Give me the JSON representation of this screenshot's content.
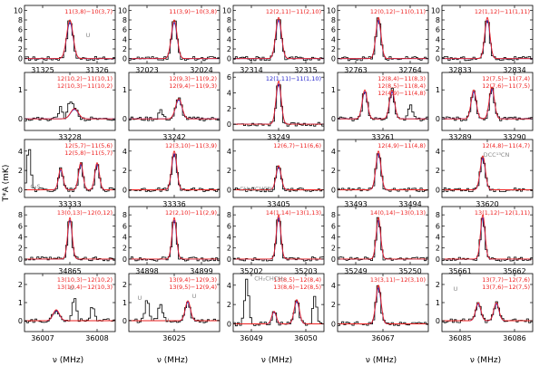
{
  "chart_data": {
    "type": "line",
    "title": "",
    "xlabel": "ν (MHz)",
    "ylabel": "T*A (mK)",
    "colors": {
      "observed": "#000000",
      "model_total": "#2222cc",
      "model_species": "#ee2222",
      "other": "#888888"
    },
    "panels": [
      {
        "label_lines": [
          "11(3,8)−10(3,7)"
        ],
        "label_color": "#ee2222",
        "x_ticks": [
          "31325",
          "31326"
        ],
        "y_ticks": [
          "0",
          "2",
          "4",
          "6",
          "8",
          "10"
        ],
        "ylim": [
          -1,
          11
        ],
        "peaks": [
          {
            "pos": 0.5,
            "h": 8,
            "w": 0.05
          }
        ],
        "extra": [],
        "annots": [
          {
            "text": "U",
            "x": 0.7,
            "y": 0.55,
            "color": "#888888"
          }
        ]
      },
      {
        "label_lines": [
          "11(3,9)−10(3,8)"
        ],
        "label_color": "#ee2222",
        "x_ticks": [
          "32023",
          "32024"
        ],
        "y_ticks": [
          "0",
          "2",
          "4",
          "6",
          "8",
          "10"
        ],
        "ylim": [
          -1,
          11
        ],
        "peaks": [
          {
            "pos": 0.5,
            "h": 8,
            "w": 0.045
          }
        ],
        "extra": [],
        "annots": []
      },
      {
        "label_lines": [
          "12(2,11)−11(2,10)"
        ],
        "label_color": "#ee2222",
        "x_ticks": [
          "32314",
          "32315"
        ],
        "y_ticks": [
          "0",
          "2",
          "4",
          "6",
          "8",
          "10"
        ],
        "ylim": [
          -1,
          11
        ],
        "peaks": [
          {
            "pos": 0.5,
            "h": 8.5,
            "w": 0.045
          }
        ],
        "extra": [],
        "annots": []
      },
      {
        "label_lines": [
          "12(0,12)−11(0,11)"
        ],
        "label_color": "#ee2222",
        "x_ticks": [
          "32763",
          "32764"
        ],
        "y_ticks": [
          "0",
          "2",
          "4",
          "6",
          "8",
          "10"
        ],
        "ylim": [
          -1,
          11
        ],
        "peaks": [
          {
            "pos": 0.45,
            "h": 8.5,
            "w": 0.04
          }
        ],
        "extra": [],
        "annots": []
      },
      {
        "label_lines": [
          "12(1,12)−11(1,11)"
        ],
        "label_color": "#ee2222",
        "x_ticks": [
          "32833",
          "32834"
        ],
        "y_ticks": [
          "0",
          "2",
          "4",
          "6",
          "8",
          "10"
        ],
        "ylim": [
          -1,
          11
        ],
        "peaks": [
          {
            "pos": 0.5,
            "h": 8.5,
            "w": 0.04
          }
        ],
        "extra": [],
        "annots": []
      },
      {
        "label_lines": [
          "12(10,2)−11(10,1)",
          "12(10,3)−11(10,2)"
        ],
        "label_color": "#ee2222",
        "x_ticks": [
          "33228"
        ],
        "y_ticks": [
          "0",
          "1"
        ],
        "ylim": [
          -0.4,
          1.6
        ],
        "peaks": [
          {
            "pos": 0.55,
            "h": 0.35,
            "w": 0.06
          }
        ],
        "extra": [
          {
            "pos": 0.4,
            "h": 0.4
          },
          {
            "pos": 0.5,
            "h": 0.5
          }
        ],
        "annots": []
      },
      {
        "label_lines": [
          "12(9,3)−11(9,2)",
          "12(9,4)−11(9,3)"
        ],
        "label_color": "#ee2222",
        "x_ticks": [
          "33242"
        ],
        "y_ticks": [
          "0",
          "1"
        ],
        "ylim": [
          -0.4,
          1.6
        ],
        "peaks": [
          {
            "pos": 0.55,
            "h": 0.7,
            "w": 0.05
          }
        ],
        "extra": [
          {
            "pos": 0.35,
            "h": 0.3
          }
        ],
        "annots": []
      },
      {
        "label_lines": [
          "12(1,11)−11(1,10)"
        ],
        "label_color": "#2222cc",
        "x_ticks": [
          "33249"
        ],
        "y_ticks": [
          "0",
          "2",
          "4",
          "6"
        ],
        "ylim": [
          -0.8,
          6.6
        ],
        "peaks": [
          {
            "pos": 0.5,
            "h": 5.5,
            "w": 0.04
          }
        ],
        "extra": [],
        "annots": []
      },
      {
        "label_lines": [
          "12(8,4)−11(8,3)",
          "12(8,5)−11(8,4)",
          "12(4,9)−11(4,8)"
        ],
        "label_color": "#ee2222",
        "x_ticks": [
          "33261"
        ],
        "y_ticks": [
          "0",
          "1"
        ],
        "ylim": [
          -0.4,
          1.6
        ],
        "peaks": [
          {
            "pos": 0.3,
            "h": 1.0,
            "w": 0.04
          },
          {
            "pos": 0.6,
            "h": 1.0,
            "w": 0.04
          }
        ],
        "extra": [
          {
            "pos": 0.8,
            "h": 0.5
          }
        ],
        "annots": []
      },
      {
        "label_lines": [
          "12(7,5)−11(7,4)",
          "12(7,6)−11(7,5)"
        ],
        "label_color": "#ee2222",
        "x_ticks": [
          "33289",
          "33290"
        ],
        "y_ticks": [
          "0",
          "1"
        ],
        "ylim": [
          -0.4,
          1.6
        ],
        "peaks": [
          {
            "pos": 0.35,
            "h": 1.0,
            "w": 0.04
          },
          {
            "pos": 0.55,
            "h": 1.1,
            "w": 0.04
          }
        ],
        "extra": [],
        "annots": []
      },
      {
        "label_lines": [
          "12(5,7)−11(5,6)",
          "12(5,8)−11(5,7)"
        ],
        "label_color": "#ee2222",
        "x_ticks": [
          "33333"
        ],
        "y_ticks": [
          "0",
          "2",
          "4"
        ],
        "ylim": [
          -0.8,
          5.2
        ],
        "peaks": [
          {
            "pos": 0.4,
            "h": 2.2,
            "w": 0.035
          },
          {
            "pos": 0.62,
            "h": 2.8,
            "w": 0.035
          },
          {
            "pos": 0.8,
            "h": 2.8,
            "w": 0.035
          }
        ],
        "extra": [
          {
            "pos": 0.05,
            "h": 4.5
          }
        ],
        "annots": [
          {
            "text": "C₂S",
            "x": 0.12,
            "y": 0.84,
            "color": "#888888"
          }
        ]
      },
      {
        "label_lines": [
          "12(3,10)−11(3,9)"
        ],
        "label_color": "#ee2222",
        "x_ticks": [
          "33336"
        ],
        "y_ticks": [
          "0",
          "2",
          "4"
        ],
        "ylim": [
          -0.8,
          5.2
        ],
        "peaks": [
          {
            "pos": 0.5,
            "h": 4.0,
            "w": 0.04
          }
        ],
        "extra": [],
        "annots": []
      },
      {
        "label_lines": [
          "12(6,7)−11(6,6)"
        ],
        "label_color": "#ee2222",
        "x_ticks": [
          "33405"
        ],
        "y_ticks": [
          "0",
          "2",
          "4"
        ],
        "ylim": [
          -0.8,
          5.2
        ],
        "peaks": [
          {
            "pos": 0.5,
            "h": 2.5,
            "w": 0.04
          }
        ],
        "extra": [],
        "annots": [
          {
            "text": "CH₂CCHCN",
            "x": 0.25,
            "y": 0.88,
            "color": "#888888"
          }
        ]
      },
      {
        "label_lines": [
          "12(4,9)−11(4,8)"
        ],
        "label_color": "#ee2222",
        "x_ticks": [
          "33493",
          "33494"
        ],
        "y_ticks": [
          "0",
          "2",
          "4"
        ],
        "ylim": [
          -0.8,
          5.2
        ],
        "peaks": [
          {
            "pos": 0.45,
            "h": 4.0,
            "w": 0.04
          }
        ],
        "extra": [],
        "annots": []
      },
      {
        "label_lines": [
          "12(4,8)−11(4,7)"
        ],
        "label_color": "#ee2222",
        "x_ticks": [
          "33620"
        ],
        "y_ticks": [
          "0",
          "2",
          "4"
        ],
        "ylim": [
          -0.8,
          5.2
        ],
        "peaks": [
          {
            "pos": 0.45,
            "h": 3.5,
            "w": 0.04
          }
        ],
        "extra": [],
        "annots": [
          {
            "text": "DCC¹³CN",
            "x": 0.6,
            "y": 0.3,
            "color": "#888888"
          }
        ]
      },
      {
        "label_lines": [
          "13(0,13)−12(0,12)"
        ],
        "label_color": "#ee2222",
        "x_ticks": [
          "34865"
        ],
        "y_ticks": [
          "0",
          "2",
          "4",
          "6",
          "8"
        ],
        "ylim": [
          -1,
          9.5
        ],
        "peaks": [
          {
            "pos": 0.5,
            "h": 7.5,
            "w": 0.035
          }
        ],
        "extra": [],
        "annots": []
      },
      {
        "label_lines": [
          "12(2,10)−11(2,9)"
        ],
        "label_color": "#ee2222",
        "x_ticks": [
          "34898",
          "34899"
        ],
        "y_ticks": [
          "0",
          "2",
          "4",
          "6",
          "8"
        ],
        "ylim": [
          -1,
          9.5
        ],
        "peaks": [
          {
            "pos": 0.5,
            "h": 7.5,
            "w": 0.035
          }
        ],
        "extra": [],
        "annots": []
      },
      {
        "label_lines": [
          "14(1,14)−13(1,13)"
        ],
        "label_color": "#ee2222",
        "x_ticks": [
          "35202",
          "35203"
        ],
        "y_ticks": [
          "0",
          "2",
          "4",
          "6",
          "8"
        ],
        "ylim": [
          -1,
          9.5
        ],
        "peaks": [
          {
            "pos": 0.5,
            "h": 8.0,
            "w": 0.035
          }
        ],
        "extra": [],
        "annots": []
      },
      {
        "label_lines": [
          "14(0,14)−13(0,13)"
        ],
        "label_color": "#ee2222",
        "x_ticks": [
          "35249",
          "35250"
        ],
        "y_ticks": [
          "0",
          "2",
          "4",
          "6",
          "8"
        ],
        "ylim": [
          -1,
          9.5
        ],
        "peaks": [
          {
            "pos": 0.45,
            "h": 7.5,
            "w": 0.035
          }
        ],
        "extra": [],
        "annots": []
      },
      {
        "label_lines": [
          "13(1,12)−12(1,11)"
        ],
        "label_color": "#ee2222",
        "x_ticks": [
          "35661",
          "35662"
        ],
        "y_ticks": [
          "0",
          "2",
          "4",
          "6",
          "8"
        ],
        "ylim": [
          -1,
          9.5
        ],
        "peaks": [
          {
            "pos": 0.45,
            "h": 8.0,
            "w": 0.035
          }
        ],
        "extra": [],
        "annots": []
      },
      {
        "label_lines": [
          "13(10,3)−12(10,2)",
          "13(10,4)−12(10,3)"
        ],
        "label_color": "#ee2222",
        "x_ticks": [
          "36007",
          "36008"
        ],
        "y_ticks": [
          "0",
          "1",
          "2"
        ],
        "ylim": [
          -0.6,
          2.6
        ],
        "peaks": [
          {
            "pos": 0.35,
            "h": 0.6,
            "w": 0.05
          }
        ],
        "extra": [
          {
            "pos": 0.55,
            "h": 1.4
          },
          {
            "pos": 0.75,
            "h": 0.8
          }
        ],
        "annots": [
          {
            "text": "U",
            "x": 0.52,
            "y": 0.28,
            "color": "#888888"
          }
        ]
      },
      {
        "label_lines": [
          "13(9,4)−12(9,3)",
          "13(9,5)−12(9,4)"
        ],
        "label_color": "#ee2222",
        "x_ticks": [
          "36025"
        ],
        "y_ticks": [
          "0",
          "1",
          "2"
        ],
        "ylim": [
          -0.6,
          2.6
        ],
        "peaks": [
          {
            "pos": 0.65,
            "h": 1.1,
            "w": 0.04
          }
        ],
        "extra": [
          {
            "pos": 0.2,
            "h": 1.2
          },
          {
            "pos": 0.35,
            "h": 1.0
          }
        ],
        "annots": [
          {
            "text": "U",
            "x": 0.12,
            "y": 0.45,
            "color": "#888888"
          },
          {
            "text": "U",
            "x": 0.72,
            "y": 0.42,
            "color": "#888888"
          },
          {
            "text": "U",
            "x": 0.42,
            "y": 0.84,
            "color": "#888888"
          }
        ]
      },
      {
        "label_lines": [
          "13(8,5)−12(8,4)",
          "13(8,6)−12(8,5)"
        ],
        "label_color": "#ee2222",
        "x_ticks": [
          "36049",
          "36050"
        ],
        "y_ticks": [
          "0",
          "2",
          "4"
        ],
        "ylim": [
          -0.8,
          5.2
        ],
        "peaks": [
          {
            "pos": 0.45,
            "h": 1.3,
            "w": 0.035
          },
          {
            "pos": 0.7,
            "h": 2.5,
            "w": 0.04
          }
        ],
        "extra": [
          {
            "pos": 0.15,
            "h": 4.8
          },
          {
            "pos": 0.9,
            "h": 3.0
          }
        ],
        "annots": [
          {
            "text": "CH₂CHCH₃",
            "x": 0.4,
            "y": 0.12,
            "color": "#888888"
          }
        ]
      },
      {
        "label_lines": [
          "13(3,11)−12(3,10)"
        ],
        "label_color": "#ee2222",
        "x_ticks": [
          "36067"
        ],
        "y_ticks": [
          "0",
          "2",
          "4"
        ],
        "ylim": [
          -0.8,
          5.2
        ],
        "peaks": [
          {
            "pos": 0.45,
            "h": 4.0,
            "w": 0.04
          }
        ],
        "extra": [],
        "annots": []
      },
      {
        "label_lines": [
          "13(7,7)−12(7,6)",
          "13(7,6)−12(7,5)"
        ],
        "label_color": "#ee2222",
        "x_ticks": [
          "36085",
          "36086"
        ],
        "y_ticks": [
          "0",
          "1",
          "2"
        ],
        "ylim": [
          -0.6,
          2.6
        ],
        "peaks": [
          {
            "pos": 0.4,
            "h": 1.0,
            "w": 0.04
          },
          {
            "pos": 0.6,
            "h": 1.0,
            "w": 0.04
          }
        ],
        "extra": [],
        "annots": [
          {
            "text": "U",
            "x": 0.15,
            "y": 0.3,
            "color": "#888888"
          }
        ]
      }
    ]
  }
}
